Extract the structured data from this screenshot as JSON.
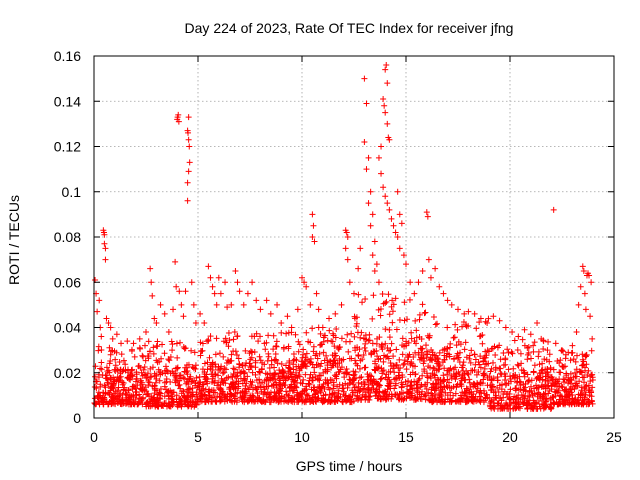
{
  "chart_data": {
    "type": "scatter",
    "title": "Day 224 of 2023, Rate Of TEC Index for receiver jfng",
    "xlabel": "GPS time / hours",
    "ylabel": "ROTI / TECUs",
    "xlim": [
      0,
      25
    ],
    "ylim": [
      0,
      0.16
    ],
    "x_ticks": [
      0,
      5,
      10,
      15,
      20,
      25
    ],
    "x_tick_labels": [
      "0",
      "5",
      "10",
      "15",
      "20",
      "25"
    ],
    "y_ticks": [
      0,
      0.02,
      0.04,
      0.06,
      0.08,
      0.1,
      0.12,
      0.14,
      0.16
    ],
    "y_tick_labels": [
      "0",
      "0.02",
      "0.04",
      "0.06",
      "0.08",
      "0.1",
      "0.12",
      "0.14",
      "0.16"
    ],
    "grid": true,
    "marker": "+",
    "color": "#ff0000",
    "series": [
      {
        "name": "ROTI",
        "points": [
          [
            0.05,
            0.061
          ],
          [
            0.1,
            0.055
          ],
          [
            0.15,
            0.047
          ],
          [
            0.25,
            0.052
          ],
          [
            0.3,
            0.04
          ],
          [
            0.35,
            0.036
          ],
          [
            0.45,
            0.083
          ],
          [
            0.48,
            0.082
          ],
          [
            0.5,
            0.081
          ],
          [
            0.5,
            0.077
          ],
          [
            0.55,
            0.075
          ],
          [
            0.55,
            0.07
          ],
          [
            0.6,
            0.044
          ],
          [
            0.7,
            0.042
          ],
          [
            0.8,
            0.04
          ],
          [
            0.9,
            0.035
          ],
          [
            1.1,
            0.037
          ],
          [
            1.3,
            0.033
          ],
          [
            1.6,
            0.034
          ],
          [
            1.9,
            0.033
          ],
          [
            2.2,
            0.035
          ],
          [
            2.5,
            0.038
          ],
          [
            2.7,
            0.066
          ],
          [
            2.75,
            0.06
          ],
          [
            2.8,
            0.054
          ],
          [
            2.9,
            0.044
          ],
          [
            3.0,
            0.042
          ],
          [
            3.2,
            0.05
          ],
          [
            3.4,
            0.046
          ],
          [
            3.6,
            0.038
          ],
          [
            3.8,
            0.048
          ],
          [
            3.9,
            0.069
          ],
          [
            3.95,
            0.058
          ],
          [
            4.0,
            0.132
          ],
          [
            4.02,
            0.133
          ],
          [
            4.05,
            0.134
          ],
          [
            4.08,
            0.131
          ],
          [
            4.1,
            0.056
          ],
          [
            4.2,
            0.05
          ],
          [
            4.3,
            0.045
          ],
          [
            4.4,
            0.056
          ],
          [
            4.5,
            0.127
          ],
          [
            4.52,
            0.126
          ],
          [
            4.55,
            0.123
          ],
          [
            4.55,
            0.133
          ],
          [
            4.58,
            0.12
          ],
          [
            4.6,
            0.113
          ],
          [
            4.55,
            0.109
          ],
          [
            4.5,
            0.104
          ],
          [
            4.5,
            0.096
          ],
          [
            4.7,
            0.06
          ],
          [
            4.8,
            0.05
          ],
          [
            4.9,
            0.042
          ],
          [
            5.1,
            0.046
          ],
          [
            5.3,
            0.042
          ],
          [
            5.5,
            0.067
          ],
          [
            5.6,
            0.062
          ],
          [
            5.7,
            0.058
          ],
          [
            5.8,
            0.055
          ],
          [
            5.9,
            0.05
          ],
          [
            6.0,
            0.062
          ],
          [
            6.1,
            0.055
          ],
          [
            6.3,
            0.06
          ],
          [
            6.4,
            0.049
          ],
          [
            6.6,
            0.05
          ],
          [
            6.8,
            0.065
          ],
          [
            6.9,
            0.06
          ],
          [
            7.0,
            0.056
          ],
          [
            7.2,
            0.05
          ],
          [
            7.4,
            0.055
          ],
          [
            7.6,
            0.06
          ],
          [
            7.8,
            0.052
          ],
          [
            8.0,
            0.048
          ],
          [
            8.3,
            0.052
          ],
          [
            8.5,
            0.046
          ],
          [
            8.8,
            0.05
          ],
          [
            9.0,
            0.042
          ],
          [
            9.3,
            0.045
          ],
          [
            9.5,
            0.04
          ],
          [
            9.8,
            0.048
          ],
          [
            10.0,
            0.062
          ],
          [
            10.1,
            0.06
          ],
          [
            10.2,
            0.058
          ],
          [
            10.4,
            0.05
          ],
          [
            10.5,
            0.09
          ],
          [
            10.55,
            0.085
          ],
          [
            10.5,
            0.08
          ],
          [
            10.6,
            0.078
          ],
          [
            10.7,
            0.055
          ],
          [
            10.8,
            0.048
          ],
          [
            11.0,
            0.04
          ],
          [
            11.3,
            0.044
          ],
          [
            11.6,
            0.046
          ],
          [
            11.9,
            0.05
          ],
          [
            12.1,
            0.083
          ],
          [
            12.15,
            0.082
          ],
          [
            12.2,
            0.08
          ],
          [
            12.1,
            0.075
          ],
          [
            12.2,
            0.07
          ],
          [
            12.3,
            0.06
          ],
          [
            12.5,
            0.055
          ],
          [
            12.7,
            0.066
          ],
          [
            12.8,
            0.075
          ],
          [
            13.0,
            0.15
          ],
          [
            13.1,
            0.139
          ],
          [
            13.0,
            0.122
          ],
          [
            13.2,
            0.115
          ],
          [
            13.1,
            0.11
          ],
          [
            13.3,
            0.1
          ],
          [
            13.2,
            0.095
          ],
          [
            13.4,
            0.09
          ],
          [
            13.3,
            0.085
          ],
          [
            13.5,
            0.078
          ],
          [
            13.4,
            0.072
          ],
          [
            13.6,
            0.068
          ],
          [
            13.5,
            0.065
          ],
          [
            13.7,
            0.06
          ],
          [
            13.9,
            0.141
          ],
          [
            13.95,
            0.138
          ],
          [
            14.0,
            0.154
          ],
          [
            14.05,
            0.156
          ],
          [
            14.1,
            0.148
          ],
          [
            14.0,
            0.135
          ],
          [
            14.1,
            0.13
          ],
          [
            14.15,
            0.124
          ],
          [
            14.2,
            0.123
          ],
          [
            13.8,
            0.12
          ],
          [
            13.7,
            0.115
          ],
          [
            13.8,
            0.108
          ],
          [
            13.9,
            0.102
          ],
          [
            14.0,
            0.098
          ],
          [
            14.1,
            0.095
          ],
          [
            14.2,
            0.092
          ],
          [
            14.3,
            0.088
          ],
          [
            14.4,
            0.085
          ],
          [
            14.5,
            0.082
          ],
          [
            14.6,
            0.1
          ],
          [
            14.7,
            0.09
          ],
          [
            14.8,
            0.086
          ],
          [
            14.6,
            0.08
          ],
          [
            14.7,
            0.075
          ],
          [
            14.9,
            0.072
          ],
          [
            15.0,
            0.068
          ],
          [
            15.2,
            0.06
          ],
          [
            15.4,
            0.055
          ],
          [
            15.6,
            0.06
          ],
          [
            15.8,
            0.065
          ],
          [
            16.0,
            0.091
          ],
          [
            16.05,
            0.089
          ],
          [
            16.1,
            0.07
          ],
          [
            16.2,
            0.062
          ],
          [
            16.4,
            0.066
          ],
          [
            16.6,
            0.058
          ],
          [
            16.8,
            0.055
          ],
          [
            17.0,
            0.052
          ],
          [
            17.2,
            0.05
          ],
          [
            17.5,
            0.048
          ],
          [
            17.8,
            0.046
          ],
          [
            18.0,
            0.047
          ],
          [
            18.3,
            0.046
          ],
          [
            18.6,
            0.044
          ],
          [
            18.9,
            0.042
          ],
          [
            19.2,
            0.045
          ],
          [
            19.5,
            0.043
          ],
          [
            19.8,
            0.04
          ],
          [
            20.1,
            0.038
          ],
          [
            20.4,
            0.036
          ],
          [
            20.7,
            0.039
          ],
          [
            21.0,
            0.037
          ],
          [
            21.3,
            0.042
          ],
          [
            21.5,
            0.035
          ],
          [
            21.8,
            0.03
          ],
          [
            22.1,
            0.092
          ],
          [
            22.2,
            0.033
          ],
          [
            22.5,
            0.03
          ],
          [
            22.8,
            0.029
          ],
          [
            23.0,
            0.032
          ],
          [
            23.2,
            0.038
          ],
          [
            23.3,
            0.05
          ],
          [
            23.4,
            0.058
          ],
          [
            23.5,
            0.067
          ],
          [
            23.55,
            0.065
          ],
          [
            23.6,
            0.055
          ],
          [
            23.65,
            0.048
          ],
          [
            23.7,
            0.063
          ],
          [
            23.75,
            0.064
          ],
          [
            23.8,
            0.063
          ],
          [
            23.85,
            0.045
          ],
          [
            23.9,
            0.06
          ],
          [
            23.95,
            0.035
          ]
        ]
      }
    ],
    "dense_band": {
      "description": "Continuous cluster of thousands of points between about 0.005 and 0.035 TECU over the full 0-24 h range",
      "segments": [
        {
          "x": [
            0,
            2.5
          ],
          "ymin": 0.006,
          "ymax": 0.032
        },
        {
          "x": [
            2.5,
            5
          ],
          "ymin": 0.005,
          "ymax": 0.034
        },
        {
          "x": [
            5,
            10
          ],
          "ymin": 0.007,
          "ymax": 0.038
        },
        {
          "x": [
            10,
            12.5
          ],
          "ymin": 0.007,
          "ymax": 0.04
        },
        {
          "x": [
            12.5,
            16
          ],
          "ymin": 0.008,
          "ymax": 0.055
        },
        {
          "x": [
            16,
            19
          ],
          "ymin": 0.007,
          "ymax": 0.045
        },
        {
          "x": [
            19,
            22
          ],
          "ymin": 0.004,
          "ymax": 0.035
        },
        {
          "x": [
            22,
            24
          ],
          "ymin": 0.006,
          "ymax": 0.03
        }
      ]
    }
  }
}
